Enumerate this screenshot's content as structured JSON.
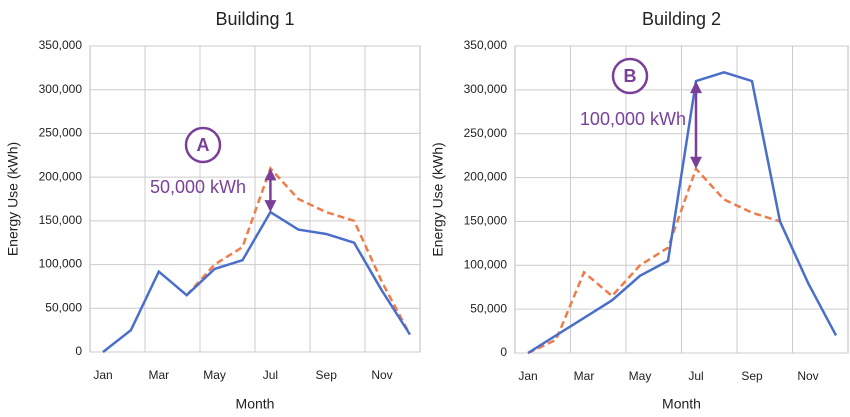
{
  "chart_data": [
    {
      "type": "line",
      "title": "Building 1",
      "x_label": "Month",
      "y_label": "Energy Use (kWh)",
      "categories": [
        "Jan",
        null,
        "Mar",
        null,
        "May",
        null,
        "Jul",
        null,
        "Sep",
        null,
        "Nov",
        null
      ],
      "series": [
        {
          "color": "#4a6fca",
          "dashed": false,
          "values": [
            0,
            25000,
            92000,
            65000,
            95000,
            105000,
            160000,
            140000,
            135000,
            125000,
            70000,
            20000
          ]
        },
        {
          "color": "#ee7d4b",
          "dashed": true,
          "values": [
            null,
            null,
            null,
            65000,
            100000,
            120000,
            210000,
            175000,
            160000,
            150000,
            80000,
            20000
          ]
        }
      ],
      "ylim": [
        0,
        350000
      ],
      "yticks": [
        0,
        {
          "value": 50000,
          "label": "50,000"
        },
        {
          "value": 100000,
          "label": "100,000"
        },
        {
          "value": 150000,
          "label": "150,000"
        },
        {
          "value": 200000,
          "label": "200,000"
        },
        {
          "value": 250000,
          "label": "250,000"
        },
        {
          "value": 300000,
          "label": "300,000"
        },
        {
          "value": 350000,
          "label": "350,000"
        }
      ],
      "grid": true,
      "annotations": [
        "A",
        "50,000 kWh"
      ]
    },
    {
      "type": "line",
      "title": "Building 2",
      "x_label": "Month",
      "y_label": "Energy Use (kWh)",
      "categories": [
        "Jan",
        null,
        "Mar",
        null,
        "May",
        null,
        "Jul",
        null,
        "Sep",
        null,
        "Nov",
        null
      ],
      "series": [
        {
          "color": "#4a6fca",
          "dashed": false,
          "values": [
            0,
            20000,
            40000,
            60000,
            88000,
            105000,
            310000,
            320000,
            310000,
            150000,
            80000,
            20000
          ]
        },
        {
          "color": "#ee7d4b",
          "dashed": true,
          "values": [
            0,
            15000,
            92000,
            65000,
            100000,
            120000,
            210000,
            175000,
            160000,
            150000,
            null,
            null
          ]
        }
      ],
      "ylim": [
        0,
        350000
      ],
      "yticks": [
        0,
        {
          "value": 50000,
          "label": "50,000"
        },
        {
          "value": 100000,
          "label": "100,000"
        },
        {
          "value": 150000,
          "label": "150,000"
        },
        {
          "value": 200000,
          "label": "200,000"
        },
        {
          "value": 250000,
          "label": "250,000"
        },
        {
          "value": 300000,
          "label": "300,000"
        },
        {
          "value": 350000,
          "label": "350,000"
        }
      ],
      "grid": true,
      "annotations": [
        "B",
        "100,000 kWh"
      ]
    }
  ]
}
